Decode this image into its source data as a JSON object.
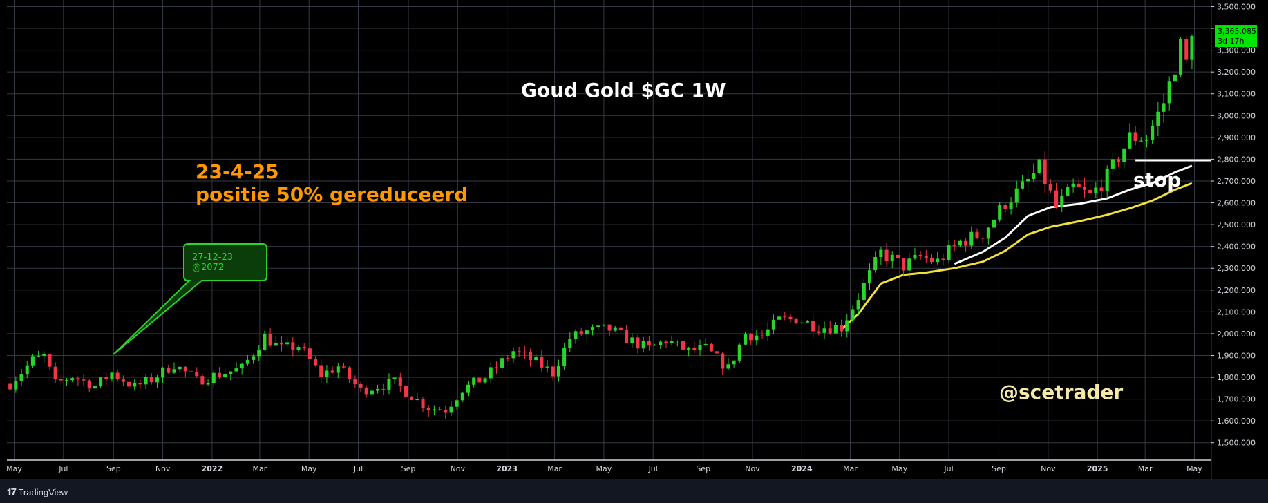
{
  "brand": {
    "logo_icon": "tradingview-logo-icon",
    "label": "TradingView"
  },
  "chart_data": {
    "type": "candlestick",
    "title": "Goud Gold $GC 1W",
    "y_axis": {
      "ticks": [
        1500,
        1600,
        1700,
        1800,
        1900,
        2000,
        2100,
        2200,
        2300,
        2400,
        2500,
        2600,
        2700,
        2800,
        2900,
        3000,
        3100,
        3200,
        3300,
        3400,
        3500
      ],
      "tick_labels": [
        "1,500.000",
        "1,600.000",
        "1,700.000",
        "1,800.000",
        "1,900.000",
        "2,000.000",
        "2,100.000",
        "2,200.000",
        "2,300.000",
        "2,400.000",
        "2,500.000",
        "2,600.000",
        "2,700.000",
        "2,800.000",
        "2,900.000",
        "3,000.000",
        "3,100.000",
        "3,200.000",
        "3,300.000",
        "3,400.000",
        "3,500.000"
      ],
      "ylim": [
        1420,
        3530
      ]
    },
    "x_axis": {
      "ticks": [
        {
          "label": "May",
          "date": "2021-05-01",
          "bold": false
        },
        {
          "label": "Jul",
          "date": "2021-07-01",
          "bold": false
        },
        {
          "label": "Sep",
          "date": "2021-09-01",
          "bold": false
        },
        {
          "label": "Nov",
          "date": "2021-11-01",
          "bold": false
        },
        {
          "label": "2022",
          "date": "2022-01-01",
          "bold": true
        },
        {
          "label": "Mar",
          "date": "2022-03-01",
          "bold": false
        },
        {
          "label": "May",
          "date": "2022-05-01",
          "bold": false
        },
        {
          "label": "Jul",
          "date": "2022-07-01",
          "bold": false
        },
        {
          "label": "Sep",
          "date": "2022-09-01",
          "bold": false
        },
        {
          "label": "Nov",
          "date": "2022-11-01",
          "bold": false
        },
        {
          "label": "2023",
          "date": "2023-01-01",
          "bold": true
        },
        {
          "label": "Mar",
          "date": "2023-03-01",
          "bold": false
        },
        {
          "label": "May",
          "date": "2023-05-01",
          "bold": false
        },
        {
          "label": "Jul",
          "date": "2023-07-01",
          "bold": false
        },
        {
          "label": "Sep",
          "date": "2023-09-01",
          "bold": false
        },
        {
          "label": "Nov",
          "date": "2023-11-01",
          "bold": false
        },
        {
          "label": "2024",
          "date": "2024-01-01",
          "bold": true
        },
        {
          "label": "Mar",
          "date": "2024-03-01",
          "bold": false
        },
        {
          "label": "May",
          "date": "2024-05-01",
          "bold": false
        },
        {
          "label": "Jul",
          "date": "2024-07-01",
          "bold": false
        },
        {
          "label": "Sep",
          "date": "2024-09-01",
          "bold": false
        },
        {
          "label": "Nov",
          "date": "2024-11-01",
          "bold": false
        },
        {
          "label": "2025",
          "date": "2025-01-01",
          "bold": true
        },
        {
          "label": "Mar",
          "date": "2025-03-01",
          "bold": false
        },
        {
          "label": "May",
          "date": "2025-05-01",
          "bold": false
        }
      ],
      "xlim": [
        "2021-04-22",
        "2025-05-22"
      ]
    },
    "grid": true,
    "price_path": [
      [
        "2021-04-26",
        1770
      ],
      [
        "2021-05-24",
        1880
      ],
      [
        "2021-06-07",
        1895
      ],
      [
        "2021-06-21",
        1770
      ],
      [
        "2021-07-12",
        1805
      ],
      [
        "2021-08-09",
        1760
      ],
      [
        "2021-08-30",
        1820
      ],
      [
        "2021-09-27",
        1755
      ],
      [
        "2021-10-18",
        1790
      ],
      [
        "2021-11-15",
        1860
      ],
      [
        "2021-12-13",
        1785
      ],
      [
        "2022-01-10",
        1815
      ],
      [
        "2022-02-07",
        1840
      ],
      [
        "2022-03-07",
        1985
      ],
      [
        "2022-03-28",
        1930
      ],
      [
        "2022-04-18",
        1945
      ],
      [
        "2022-05-16",
        1810
      ],
      [
        "2022-06-06",
        1850
      ],
      [
        "2022-07-04",
        1740
      ],
      [
        "2022-07-25",
        1760
      ],
      [
        "2022-08-15",
        1775
      ],
      [
        "2022-09-05",
        1715
      ],
      [
        "2022-09-26",
        1660
      ],
      [
        "2022-10-17",
        1650
      ],
      [
        "2022-11-07",
        1745
      ],
      [
        "2022-12-05",
        1800
      ],
      [
        "2023-01-09",
        1920
      ],
      [
        "2023-02-06",
        1870
      ],
      [
        "2023-02-27",
        1820
      ],
      [
        "2023-03-20",
        1980
      ],
      [
        "2023-04-10",
        2010
      ],
      [
        "2023-05-08",
        2020
      ],
      [
        "2023-06-05",
        1965
      ],
      [
        "2023-06-26",
        1930
      ],
      [
        "2023-07-17",
        1970
      ],
      [
        "2023-08-14",
        1920
      ],
      [
        "2023-09-04",
        1930
      ],
      [
        "2023-10-02",
        1840
      ],
      [
        "2023-10-23",
        2000
      ],
      [
        "2023-11-13",
        1990
      ],
      [
        "2023-12-04",
        2060
      ],
      [
        "2023-12-25",
        2070
      ],
      [
        "2024-01-22",
        2030
      ],
      [
        "2024-02-19",
        2030
      ],
      [
        "2024-03-11",
        2170
      ],
      [
        "2024-04-08",
        2370
      ],
      [
        "2024-05-06",
        2310
      ],
      [
        "2024-05-27",
        2350
      ],
      [
        "2024-06-17",
        2330
      ],
      [
        "2024-07-15",
        2420
      ],
      [
        "2024-08-12",
        2460
      ],
      [
        "2024-09-09",
        2600
      ],
      [
        "2024-09-30",
        2670
      ],
      [
        "2024-10-21",
        2760
      ],
      [
        "2024-11-11",
        2580
      ],
      [
        "2024-12-02",
        2670
      ],
      [
        "2024-12-23",
        2630
      ],
      [
        "2025-01-13",
        2720
      ],
      [
        "2025-02-10",
        2900
      ],
      [
        "2025-03-03",
        2900
      ],
      [
        "2025-03-24",
        3060
      ],
      [
        "2025-04-07",
        3230
      ],
      [
        "2025-04-14",
        3320
      ],
      [
        "2025-04-21",
        3240
      ],
      [
        "2025-04-28",
        3365
      ]
    ],
    "current_price": {
      "label": "3,365.085",
      "value": 3365.085,
      "countdown": "3d 17h",
      "color": "#00e600"
    },
    "up_color": "#2bd42b",
    "down_color": "#f23645",
    "moving_averages": [
      {
        "color": "#ffffff",
        "points": [
          [
            "2024-07-08",
            2320
          ],
          [
            "2024-08-12",
            2375
          ],
          [
            "2024-09-09",
            2440
          ],
          [
            "2024-10-07",
            2540
          ],
          [
            "2024-11-04",
            2580
          ],
          [
            "2024-12-09",
            2595
          ],
          [
            "2025-01-13",
            2620
          ],
          [
            "2025-02-10",
            2660
          ],
          [
            "2025-03-10",
            2690
          ],
          [
            "2025-04-07",
            2740
          ],
          [
            "2025-04-28",
            2770
          ]
        ]
      },
      {
        "color": "#f3e03b",
        "points": [
          [
            "2024-02-19",
            2020
          ],
          [
            "2024-03-11",
            2090
          ],
          [
            "2024-04-08",
            2230
          ],
          [
            "2024-05-06",
            2270
          ],
          [
            "2024-06-03",
            2280
          ],
          [
            "2024-07-08",
            2300
          ],
          [
            "2024-08-12",
            2330
          ],
          [
            "2024-09-09",
            2380
          ],
          [
            "2024-10-07",
            2455
          ],
          [
            "2024-11-04",
            2490
          ],
          [
            "2024-12-09",
            2515
          ],
          [
            "2025-01-13",
            2545
          ],
          [
            "2025-02-10",
            2575
          ],
          [
            "2025-03-10",
            2610
          ],
          [
            "2025-04-07",
            2660
          ],
          [
            "2025-04-28",
            2690
          ]
        ]
      }
    ],
    "stop_level": {
      "value": 2795,
      "label": "stop",
      "from": "2025-02-17",
      "color": "#ffffff"
    },
    "annotations": [
      {
        "text": "23-4-25",
        "color": "#ff9800"
      },
      {
        "text": "positie 50% gereduceerd",
        "color": "#ff9800"
      }
    ],
    "callout": {
      "lines": [
        "27-12-23",
        "@2072"
      ],
      "pointer_date": "2021-09-01",
      "pointer_value": 1905,
      "color": "#2bd42b"
    },
    "watermark": {
      "text": "@scetrader",
      "color": "#f5e9a8"
    }
  }
}
